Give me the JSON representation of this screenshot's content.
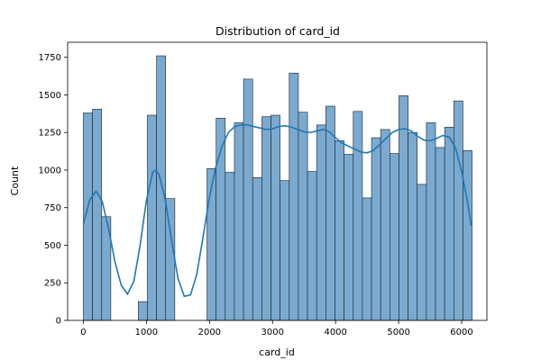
{
  "chart_data": {
    "type": "bar",
    "title": "Distribution of card_id",
    "xlabel": "card_id",
    "ylabel": "Count",
    "xlim": [
      -250,
      6400
    ],
    "ylim": [
      0,
      1850
    ],
    "xticks": [
      0,
      1000,
      2000,
      3000,
      4000,
      5000,
      6000
    ],
    "yticks": [
      0,
      250,
      500,
      750,
      1000,
      1250,
      1500,
      1750
    ],
    "bin_width": 145,
    "bins": [
      {
        "x0": 0,
        "count": 1380
      },
      {
        "x0": 145,
        "count": 1405
      },
      {
        "x0": 290,
        "count": 690
      },
      {
        "x0": 870,
        "count": 125
      },
      {
        "x0": 1015,
        "count": 1365
      },
      {
        "x0": 1160,
        "count": 1760
      },
      {
        "x0": 1305,
        "count": 810
      },
      {
        "x0": 1960,
        "count": 1010
      },
      {
        "x0": 2105,
        "count": 1345
      },
      {
        "x0": 2250,
        "count": 985
      },
      {
        "x0": 2395,
        "count": 1315
      },
      {
        "x0": 2540,
        "count": 1605
      },
      {
        "x0": 2685,
        "count": 950
      },
      {
        "x0": 2830,
        "count": 1355
      },
      {
        "x0": 2975,
        "count": 1365
      },
      {
        "x0": 3120,
        "count": 930
      },
      {
        "x0": 3265,
        "count": 1645
      },
      {
        "x0": 3410,
        "count": 1385
      },
      {
        "x0": 3555,
        "count": 990
      },
      {
        "x0": 3700,
        "count": 1300
      },
      {
        "x0": 3845,
        "count": 1425
      },
      {
        "x0": 3990,
        "count": 1195
      },
      {
        "x0": 4135,
        "count": 1105
      },
      {
        "x0": 4280,
        "count": 1390
      },
      {
        "x0": 4425,
        "count": 815
      },
      {
        "x0": 4570,
        "count": 1215
      },
      {
        "x0": 4715,
        "count": 1270
      },
      {
        "x0": 4860,
        "count": 1110
      },
      {
        "x0": 5005,
        "count": 1495
      },
      {
        "x0": 5150,
        "count": 1250
      },
      {
        "x0": 5295,
        "count": 905
      },
      {
        "x0": 5440,
        "count": 1315
      },
      {
        "x0": 5585,
        "count": 1150
      },
      {
        "x0": 5730,
        "count": 1285
      },
      {
        "x0": 5875,
        "count": 1460
      },
      {
        "x0": 6020,
        "count": 1130
      }
    ],
    "kde": {
      "x": [
        0,
        100,
        200,
        300,
        400,
        500,
        600,
        700,
        800,
        900,
        1000,
        1100,
        1150,
        1200,
        1300,
        1400,
        1500,
        1600,
        1700,
        1800,
        1900,
        2000,
        2100,
        2200,
        2300,
        2400,
        2500,
        2600,
        2700,
        2800,
        2900,
        3000,
        3100,
        3200,
        3300,
        3400,
        3500,
        3600,
        3700,
        3800,
        3900,
        4000,
        4100,
        4200,
        4300,
        4400,
        4500,
        4600,
        4700,
        4800,
        4900,
        5000,
        5100,
        5200,
        5300,
        5400,
        5500,
        5600,
        5700,
        5800,
        5900,
        6000,
        6100,
        6150
      ],
      "y": [
        640,
        800,
        860,
        790,
        610,
        390,
        235,
        175,
        260,
        500,
        800,
        985,
        1000,
        970,
        800,
        530,
        280,
        160,
        170,
        310,
        560,
        820,
        1020,
        1160,
        1250,
        1290,
        1300,
        1300,
        1290,
        1280,
        1270,
        1275,
        1290,
        1295,
        1285,
        1270,
        1255,
        1250,
        1260,
        1270,
        1255,
        1215,
        1180,
        1160,
        1140,
        1120,
        1115,
        1130,
        1170,
        1210,
        1250,
        1270,
        1275,
        1260,
        1225,
        1200,
        1195,
        1210,
        1230,
        1220,
        1150,
        990,
        770,
        630
      ]
    }
  }
}
